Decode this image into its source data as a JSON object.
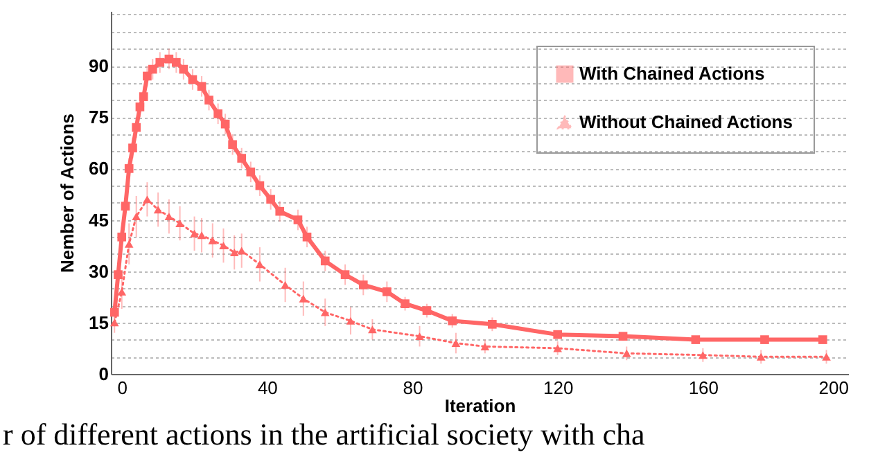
{
  "chart_data": {
    "type": "line",
    "xlabel": "Iteration",
    "ylabel": "Nember of Actions",
    "xlim": [
      -3,
      200
    ],
    "ylim": [
      0,
      106
    ],
    "xticks": [
      0,
      40,
      80,
      120,
      160,
      200
    ],
    "yticks": [
      0,
      {
        "value": 5,
        "label": null
      },
      {
        "value": 10,
        "label": null
      },
      15,
      {
        "value": 20,
        "label": null
      },
      {
        "value": 25,
        "label": null
      },
      30,
      {
        "value": 35,
        "label": null
      },
      {
        "value": 40,
        "label": null
      },
      45,
      {
        "value": 50,
        "label": null
      },
      {
        "value": 55,
        "label": null
      },
      60,
      {
        "value": 65,
        "label": null
      },
      {
        "value": 70,
        "label": null
      },
      75,
      {
        "value": 80,
        "label": null
      },
      {
        "value": 85,
        "label": null
      },
      90,
      {
        "value": 95,
        "label": null
      },
      {
        "value": 100,
        "label": null
      },
      {
        "value": 105,
        "label": null
      }
    ],
    "grid": "y",
    "legend": "top right",
    "annotations": [
      "r of different actions in the artificial society with cha"
    ],
    "series": [
      {
        "name": "With Chained Actions",
        "color": "#ff6666",
        "marker": "square",
        "line_style": "solid",
        "x": [
          -2,
          -1,
          0,
          1,
          2,
          3,
          4,
          5,
          6,
          7,
          8.5,
          10.5,
          13,
          15,
          17,
          19.5,
          22,
          24,
          26.5,
          28.5,
          30.5,
          33,
          35.5,
          38,
          41,
          43.5,
          48.5,
          51,
          56,
          61.5,
          66.5,
          73,
          78,
          84,
          91,
          102,
          120,
          138,
          158,
          177,
          193
        ],
        "values": [
          18,
          29,
          40,
          49,
          60,
          66,
          72,
          78,
          81,
          87,
          89,
          91,
          92,
          91,
          89,
          86,
          84,
          80,
          76,
          73,
          67,
          63,
          59,
          55,
          51,
          47.5,
          45,
          40,
          33,
          29,
          26,
          24,
          20.5,
          18.5,
          15.5,
          14.5,
          11.5,
          11,
          10,
          10,
          10
        ],
        "errors": [
          2,
          3,
          3,
          3,
          3,
          3,
          3,
          3,
          3,
          3,
          3,
          3,
          3,
          3,
          3,
          3,
          3,
          3,
          3,
          3,
          3,
          3,
          3,
          3,
          3,
          3,
          3,
          3,
          3,
          3,
          3,
          3,
          2,
          2,
          2,
          2,
          1,
          1,
          1,
          1,
          1
        ]
      },
      {
        "name": "Without Chained Actions",
        "color": "#ff6666",
        "marker": "triangle",
        "line_style": "dotted",
        "x": [
          -2,
          0,
          2,
          4,
          7,
          10,
          13,
          16,
          20,
          22,
          25,
          28,
          31,
          33,
          38,
          45,
          50,
          56,
          63,
          69,
          82,
          92,
          100,
          120,
          139,
          160,
          176,
          194
        ],
        "values": [
          15,
          24,
          38,
          46,
          51,
          48,
          46,
          44,
          41,
          40.5,
          39,
          37.5,
          35.5,
          36,
          32,
          26,
          22,
          18,
          15.5,
          13,
          11,
          9,
          8,
          7.5,
          6,
          5.5,
          5,
          5
        ],
        "errors": [
          3,
          5,
          6,
          6,
          5,
          5,
          5,
          5,
          5,
          5,
          5,
          5,
          5,
          5,
          5,
          5,
          5,
          4,
          4,
          3,
          3,
          3,
          2,
          2,
          2,
          2,
          2,
          2
        ]
      }
    ]
  }
}
